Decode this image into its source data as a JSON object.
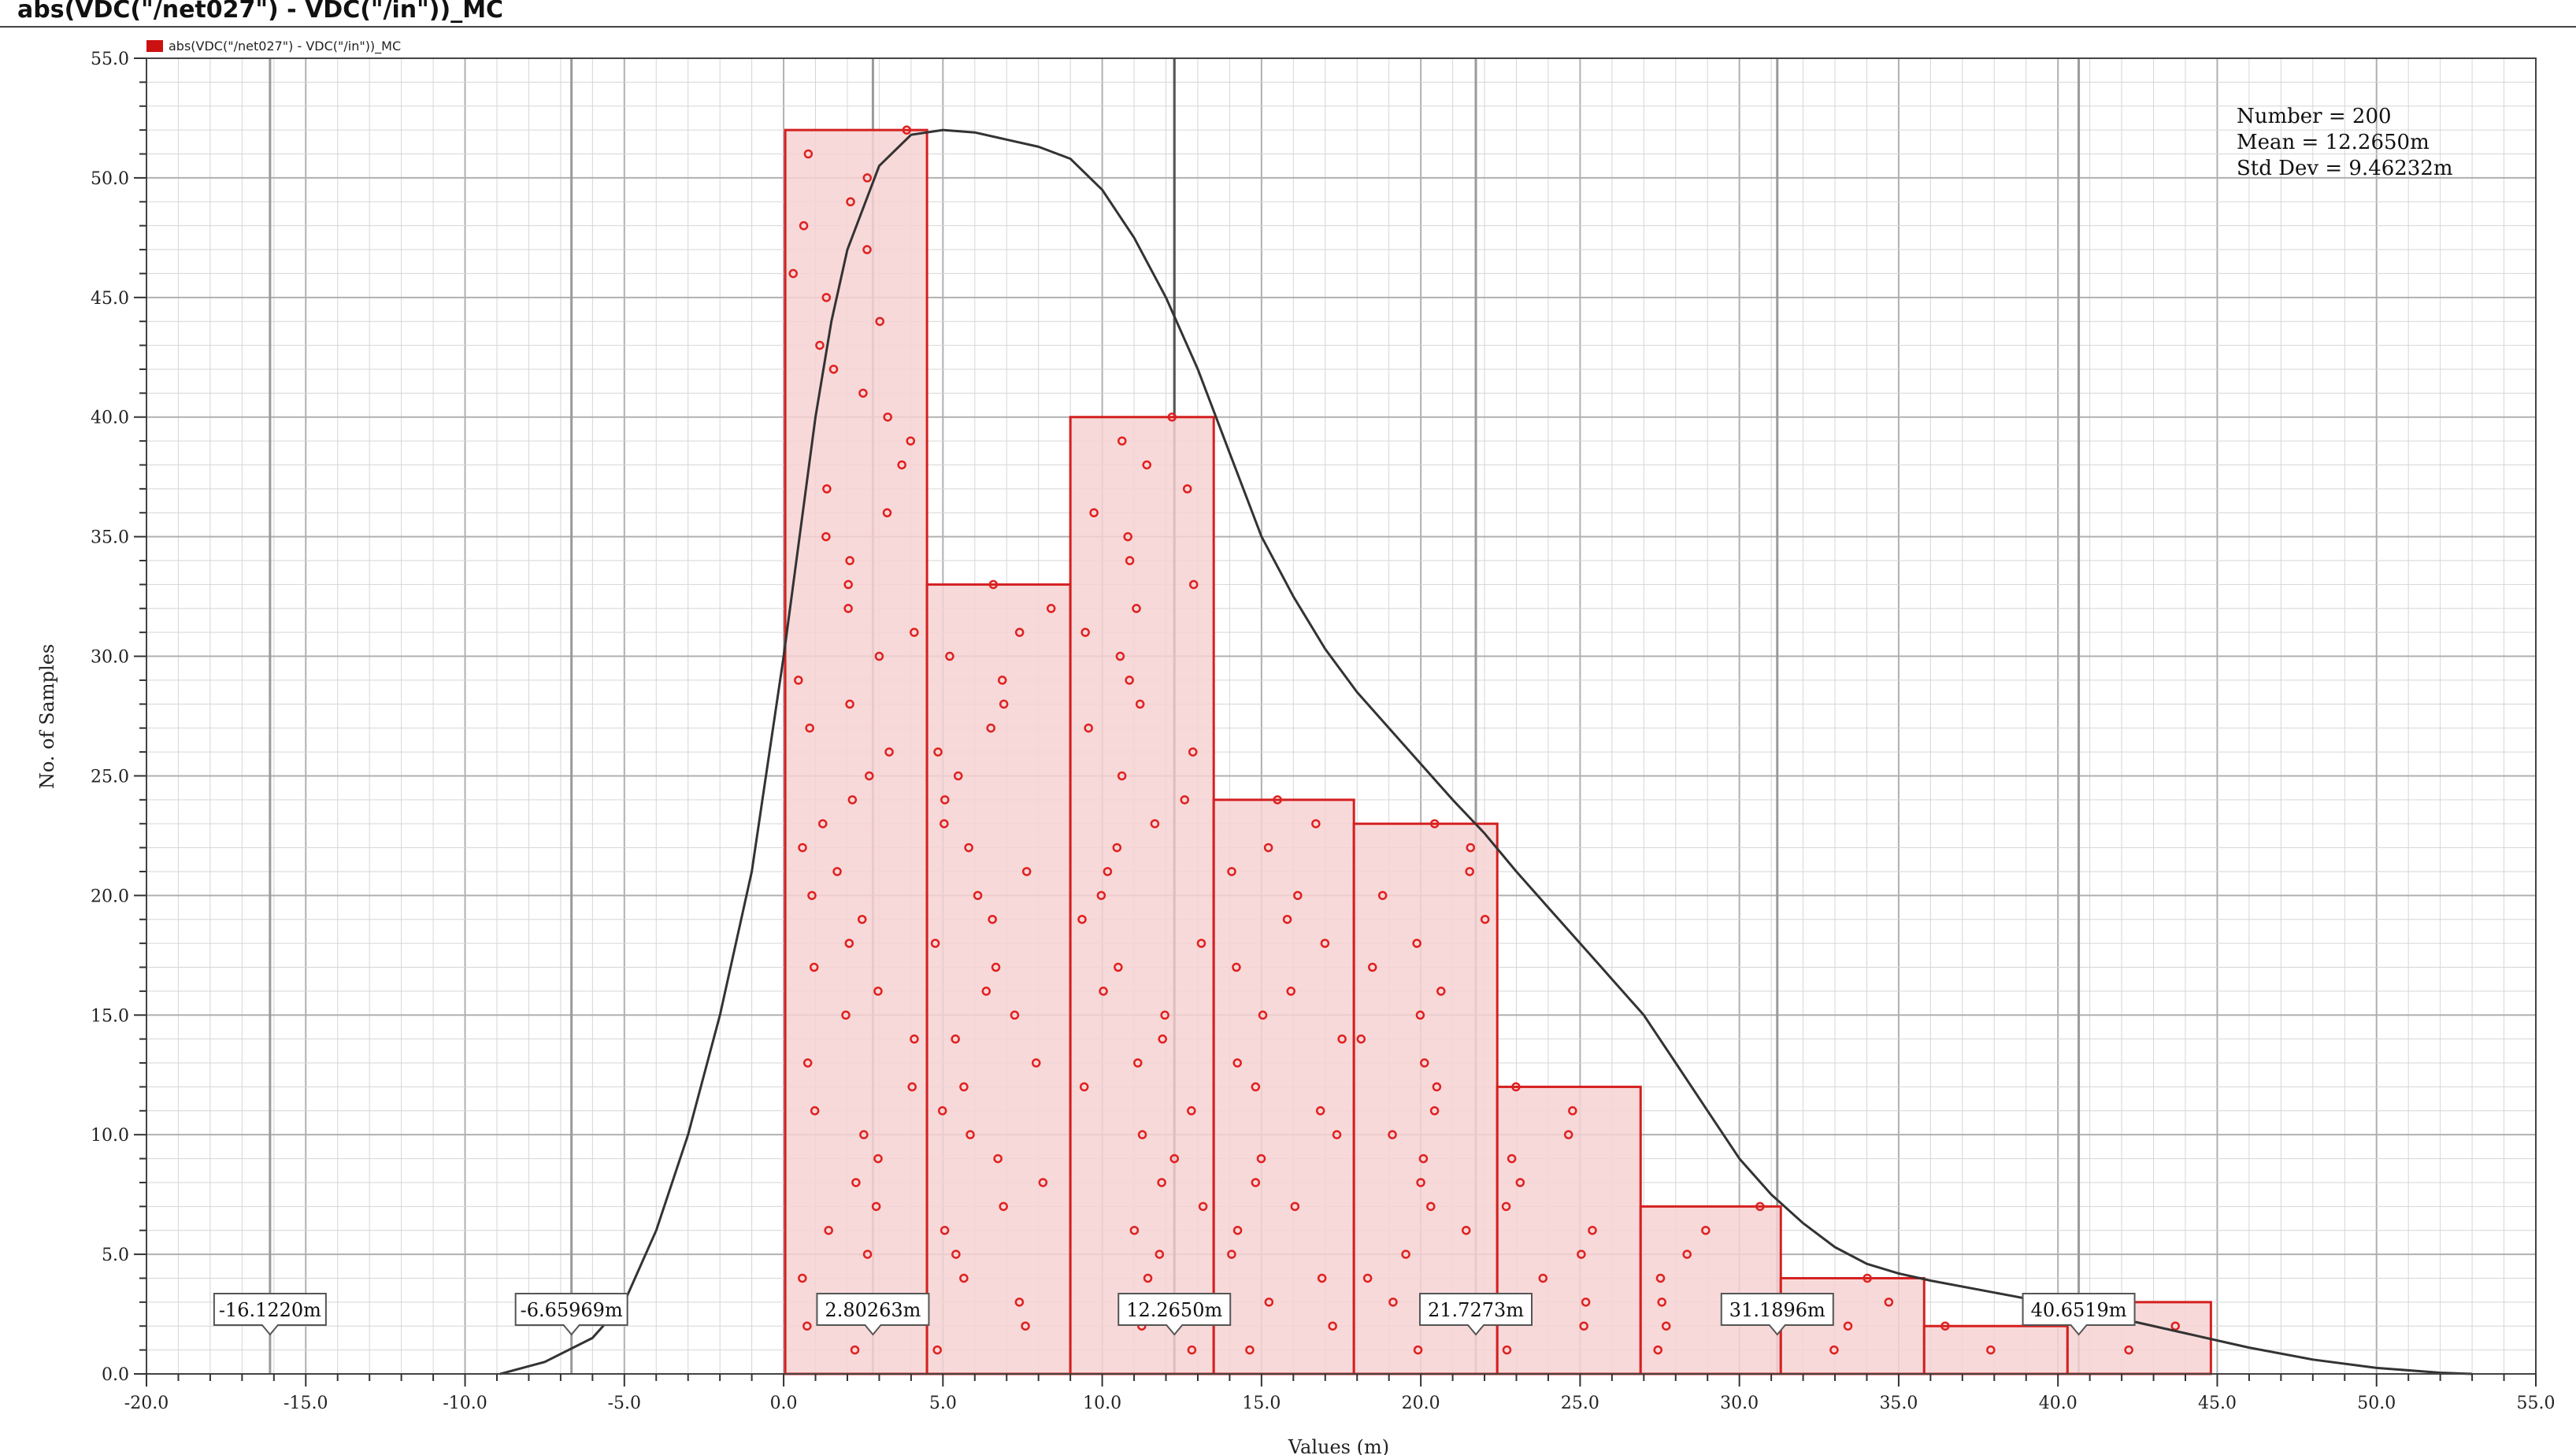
{
  "window": {
    "title": "abs(VDC(\"/net027\") - VDC(\"/in\"))_MC"
  },
  "legend": {
    "label": "abs(VDC(\"/net027\") - VDC(\"/in\"))_MC",
    "color": "#cc1111"
  },
  "stats": {
    "number_line": "Number = 200",
    "mean_line": "Mean = 12.2650m",
    "stddev_line": "Std Dev = 9.46232m"
  },
  "chart_data": {
    "type": "bar",
    "title": "abs(VDC(\"/net027\") - VDC(\"/in\"))_MC",
    "xlabel": "Values (m)",
    "ylabel": "No. of Samples",
    "xlim": [
      -20,
      55
    ],
    "ylim": [
      0,
      55
    ],
    "x_ticks": [
      -20,
      -15,
      -10,
      -5,
      0,
      5,
      10,
      15,
      20,
      25,
      30,
      35,
      40,
      45,
      50,
      55
    ],
    "x_tick_labels": [
      "-20.0",
      "-15.0",
      "-10.0",
      "-5.0",
      "0.0",
      "5.0",
      "10.0",
      "15.0",
      "20.0",
      "25.0",
      "30.0",
      "35.0",
      "40.0",
      "45.0",
      "50.0",
      "55.0"
    ],
    "y_ticks": [
      0,
      5,
      10,
      15,
      20,
      25,
      30,
      35,
      40,
      45,
      50,
      55
    ],
    "y_tick_labels": [
      "0.0",
      "5.0",
      "10.0",
      "15.0",
      "20.0",
      "25.0",
      "30.0",
      "35.0",
      "40.0",
      "45.0",
      "50.0",
      "55.0"
    ],
    "grid": true,
    "legend_position": "top-left",
    "bins": [
      {
        "x0": 0.05,
        "x1": 4.5,
        "count": 52
      },
      {
        "x0": 4.5,
        "x1": 9.0,
        "count": 33
      },
      {
        "x0": 9.0,
        "x1": 13.5,
        "count": 40
      },
      {
        "x0": 13.5,
        "x1": 17.9,
        "count": 24
      },
      {
        "x0": 17.9,
        "x1": 22.4,
        "count": 23
      },
      {
        "x0": 22.4,
        "x1": 26.9,
        "count": 12
      },
      {
        "x0": 26.9,
        "x1": 31.3,
        "count": 7
      },
      {
        "x0": 31.3,
        "x1": 35.8,
        "count": 4
      },
      {
        "x0": 35.8,
        "x1": 40.3,
        "count": 2
      },
      {
        "x0": 40.3,
        "x1": 44.8,
        "count": 3
      }
    ],
    "bar_fill": "#f7d2d2",
    "bar_stroke": "#d42020",
    "curve_color": "#333333",
    "density_curve": [
      [
        -8.9,
        0.0
      ],
      [
        -7.5,
        0.5
      ],
      [
        -6.0,
        1.5
      ],
      [
        -5.0,
        3.0
      ],
      [
        -4.0,
        6.0
      ],
      [
        -3.0,
        10.0
      ],
      [
        -2.0,
        15.0
      ],
      [
        -1.0,
        21.0
      ],
      [
        0.0,
        30.0
      ],
      [
        0.5,
        35.0
      ],
      [
        1.0,
        40.0
      ],
      [
        1.5,
        44.0
      ],
      [
        2.0,
        47.0
      ],
      [
        3.0,
        50.5
      ],
      [
        4.0,
        51.8
      ],
      [
        5.0,
        52.0
      ],
      [
        6.0,
        51.9
      ],
      [
        7.0,
        51.6
      ],
      [
        8.0,
        51.3
      ],
      [
        9.0,
        50.8
      ],
      [
        10.0,
        49.5
      ],
      [
        11.0,
        47.5
      ],
      [
        12.0,
        45.0
      ],
      [
        13.0,
        42.0
      ],
      [
        14.0,
        38.5
      ],
      [
        15.0,
        35.0
      ],
      [
        16.0,
        32.5
      ],
      [
        17.0,
        30.3
      ],
      [
        18.0,
        28.5
      ],
      [
        19.0,
        27.0
      ],
      [
        20.0,
        25.5
      ],
      [
        21.0,
        24.0
      ],
      [
        22.0,
        22.6
      ],
      [
        23.0,
        21.0
      ],
      [
        24.0,
        19.5
      ],
      [
        25.0,
        18.0
      ],
      [
        26.0,
        16.5
      ],
      [
        27.0,
        15.0
      ],
      [
        28.0,
        13.0
      ],
      [
        29.0,
        11.0
      ],
      [
        30.0,
        9.0
      ],
      [
        31.0,
        7.5
      ],
      [
        32.0,
        6.3
      ],
      [
        33.0,
        5.3
      ],
      [
        34.0,
        4.6
      ],
      [
        35.0,
        4.2
      ],
      [
        36.0,
        3.9
      ],
      [
        38.0,
        3.4
      ],
      [
        40.0,
        2.9
      ],
      [
        42.0,
        2.3
      ],
      [
        44.0,
        1.7
      ],
      [
        46.0,
        1.1
      ],
      [
        48.0,
        0.6
      ],
      [
        50.0,
        0.25
      ],
      [
        52.0,
        0.05
      ],
      [
        53.0,
        0.0
      ]
    ],
    "markers": [
      {
        "x": -16.122,
        "label": "-16.1220m"
      },
      {
        "x": -6.65969,
        "label": "-6.65969m"
      },
      {
        "x": 2.80263,
        "label": "2.80263m"
      },
      {
        "x": 12.265,
        "label": "12.2650m"
      },
      {
        "x": 21.7273,
        "label": "21.7273m"
      },
      {
        "x": 31.1896,
        "label": "31.1896m"
      },
      {
        "x": 40.6519,
        "label": "40.6519m"
      }
    ],
    "mean_x": 12.265
  }
}
